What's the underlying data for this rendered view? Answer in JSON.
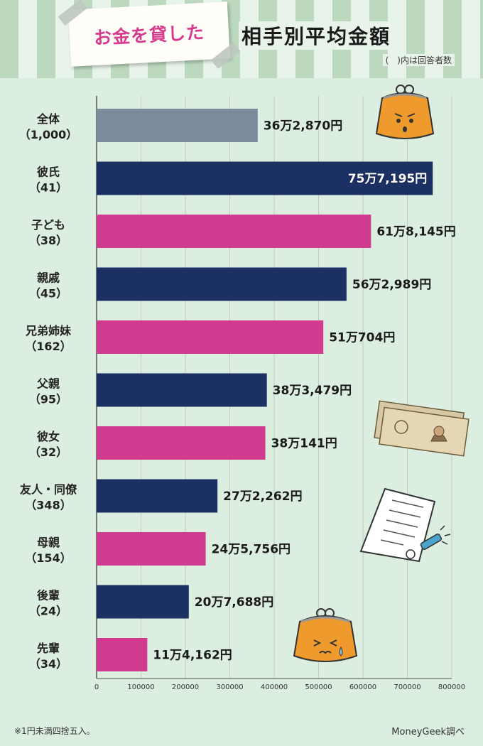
{
  "header": {
    "title_main": "お金を貸した",
    "title_sub": "相手別平均金額",
    "note": "(　)内は回答者数"
  },
  "colors": {
    "total": "#7b8b9b",
    "male": "#1b3163",
    "female": "#d13b8f",
    "grid": "#c2cac3"
  },
  "chart_data": {
    "type": "bar",
    "orientation": "horizontal",
    "title": "お金を貸した相手別平均金額",
    "xlabel": "",
    "ylabel": "",
    "xlim": [
      0,
      800000
    ],
    "xticks": [
      0,
      100000,
      200000,
      300000,
      400000,
      500000,
      600000,
      700000,
      800000
    ],
    "grid": true,
    "categories": [
      {
        "label": "全体",
        "count": "（1,000）",
        "value": 362870,
        "value_label": "36万2,870円",
        "group": "total"
      },
      {
        "label": "彼氏",
        "count": "（41）",
        "value": 757195,
        "value_label": "75万7,195円",
        "group": "male"
      },
      {
        "label": "子ども",
        "count": "（38）",
        "value": 618145,
        "value_label": "61万8,145円",
        "group": "female"
      },
      {
        "label": "親戚",
        "count": "（45）",
        "value": 562989,
        "value_label": "56万2,989円",
        "group": "male"
      },
      {
        "label": "兄弟姉妹",
        "count": "（162）",
        "value": 510704,
        "value_label": "51万704円",
        "group": "female"
      },
      {
        "label": "父親",
        "count": "（95）",
        "value": 383479,
        "value_label": "38万3,479円",
        "group": "male"
      },
      {
        "label": "彼女",
        "count": "（32）",
        "value": 380141,
        "value_label": "38万141円",
        "group": "female"
      },
      {
        "label": "友人・同僚",
        "count": "（348）",
        "value": 272262,
        "value_label": "27万2,262円",
        "group": "male"
      },
      {
        "label": "母親",
        "count": "（154）",
        "value": 245756,
        "value_label": "24万5,756円",
        "group": "female"
      },
      {
        "label": "後輩",
        "count": "（24）",
        "value": 207688,
        "value_label": "20万7,688円",
        "group": "male"
      },
      {
        "label": "先輩",
        "count": "（34）",
        "value": 114162,
        "value_label": "11万4,162円",
        "group": "female"
      }
    ]
  },
  "footer": {
    "footnote": "※1円未満四捨五入。",
    "source": "MoneyGeek調べ"
  }
}
